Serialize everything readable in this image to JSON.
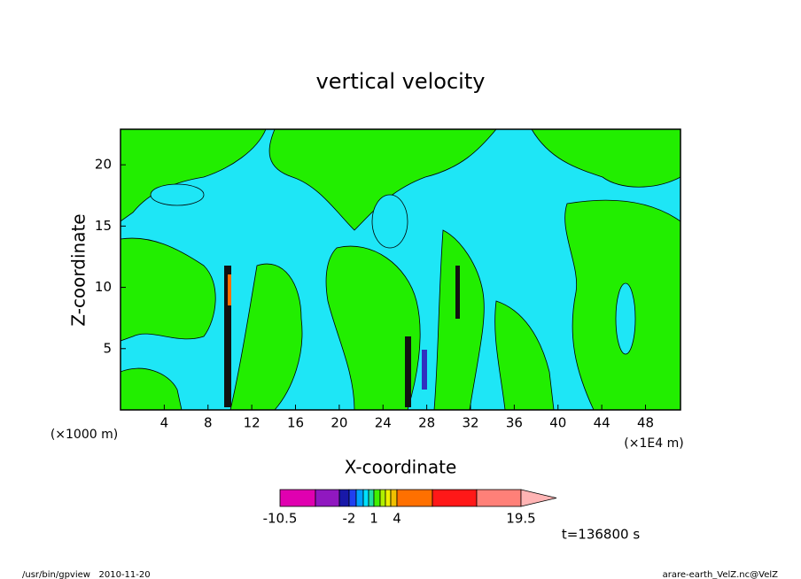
{
  "chart_data": {
    "type": "contour",
    "title": "vertical velocity",
    "x_label": "X-coordinate",
    "y_label": "Z-coordinate",
    "x_unit_left": "(×1000 m)",
    "x_unit_right": "(×1E4 m)",
    "xlim": [
      0,
      51.2
    ],
    "xticks": [
      4,
      8,
      12,
      16,
      20,
      24,
      28,
      32,
      36,
      40,
      44,
      48
    ],
    "ylim": [
      0,
      22.9
    ],
    "yticks": [
      5,
      10,
      15,
      20
    ],
    "field_colors": [
      "#1ee6f6",
      "#22ee00"
    ],
    "colorbar": {
      "levels": [
        -10.5,
        null,
        null,
        -2,
        null,
        null,
        null,
        1,
        null,
        null,
        null,
        4,
        null,
        null,
        19.5
      ],
      "colors": [
        "#e000b0",
        "#9018c0",
        "#1818a8",
        "#2040f0",
        "#00a0ff",
        "#00e0ff",
        "#20e0a0",
        "#40f000",
        "#b0f000",
        "#f0f000",
        "#f0c000",
        "#ff7000",
        "#ff1818",
        "#ff8078"
      ],
      "extend_color": "#ffb4b4"
    },
    "time_label": "t=136800 s",
    "footer_left": "/usr/bin/gpview   2010-11-20",
    "footer_right": "arare-earth_VelZ.nc@VelZ"
  }
}
